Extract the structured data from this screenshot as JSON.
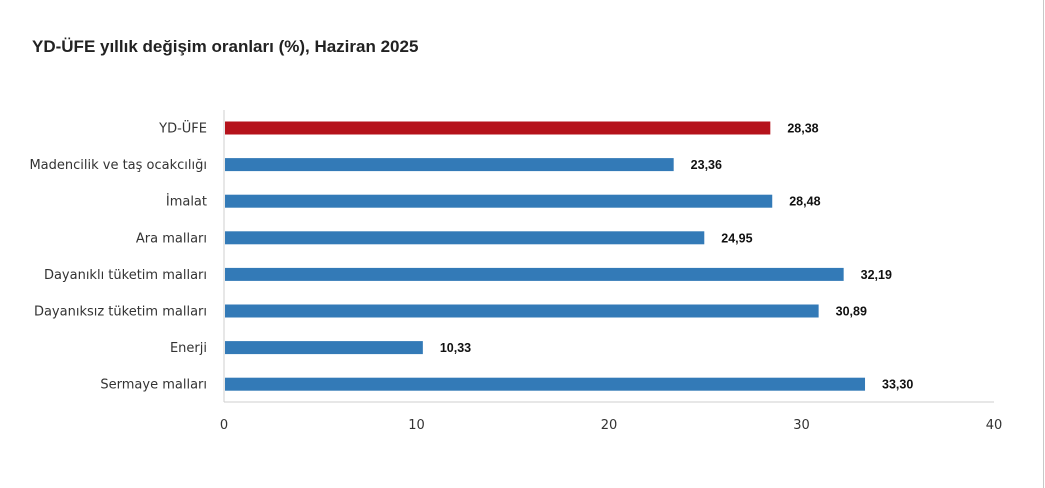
{
  "chart_data": {
    "type": "bar",
    "orientation": "horizontal",
    "title": "YD-ÜFE yıllık değişim oranları (%), Haziran 2025",
    "categories": [
      "YD-ÜFE",
      "Madencilik ve taş ocakcılığı",
      "İmalat",
      "Ara malları",
      "Dayanıklı tüketim malları",
      "Dayanıksız tüketim malları",
      "Enerji",
      "Sermaye malları"
    ],
    "values": [
      28.38,
      23.36,
      28.48,
      24.95,
      32.19,
      30.89,
      10.33,
      33.3
    ],
    "value_labels": [
      "28,38",
      "23,36",
      "28,48",
      "24,95",
      "32,19",
      "30,89",
      "10,33",
      "33,30"
    ],
    "colors": [
      "#b5121b",
      "#337ab7",
      "#337ab7",
      "#337ab7",
      "#337ab7",
      "#337ab7",
      "#337ab7",
      "#337ab7"
    ],
    "xlim": [
      0,
      40
    ],
    "xticks": [
      0,
      10,
      20,
      30,
      40
    ],
    "xtick_labels": [
      "0",
      "10",
      "20",
      "30",
      "40"
    ],
    "grid": false,
    "legend": "none"
  }
}
